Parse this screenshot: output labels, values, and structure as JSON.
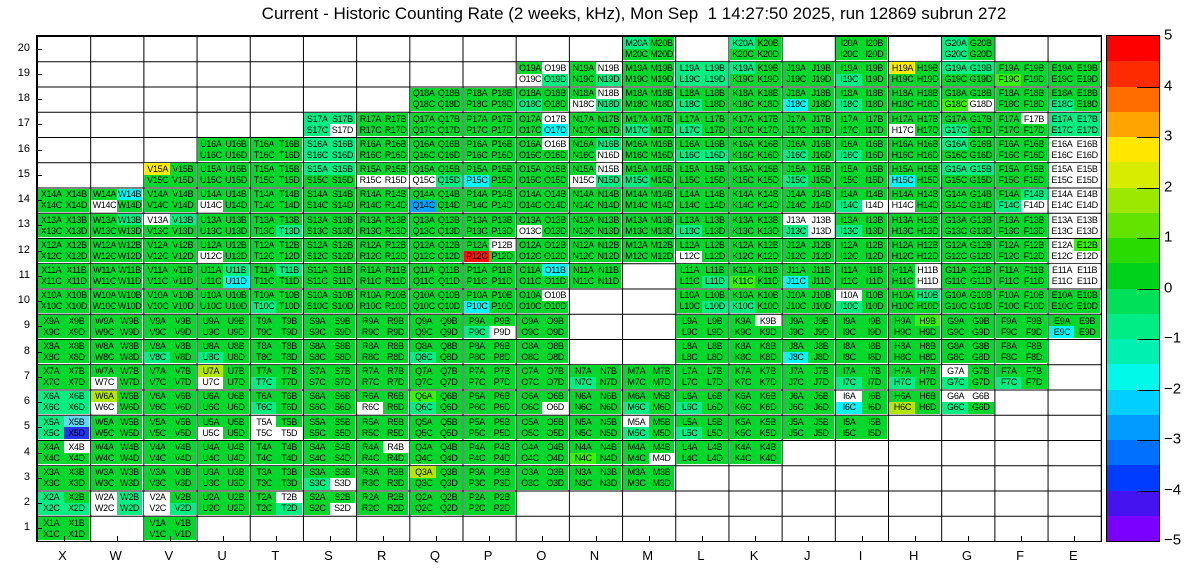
{
  "title": "Current - Historic Counting Rate (2 weeks, kHz), Mon Sep  1 14:27:50 2025, run 12869 subrun 272",
  "chart_data": {
    "type": "heatmap",
    "title": "Current - Historic Counting Rate (2 weeks, kHz), Mon Sep  1 14:27:50 2025, run 12869 subrun 272",
    "x_labels": [
      "X",
      "W",
      "V",
      "U",
      "T",
      "S",
      "R",
      "Q",
      "P",
      "O",
      "N",
      "M",
      "L",
      "K",
      "J",
      "I",
      "H",
      "G",
      "F",
      "E"
    ],
    "y_labels": [
      "20",
      "19",
      "18",
      "17",
      "16",
      "15",
      "14",
      "13",
      "12",
      "11",
      "10",
      "9",
      "8",
      "7",
      "6",
      "5",
      "4",
      "3",
      "2",
      "1"
    ],
    "quad_order": "ABCD",
    "colorbar": {
      "min": -5,
      "max": 5,
      "tick_labels": [
        "5",
        "4",
        "3",
        "2",
        "1",
        "0",
        "−1",
        "−2",
        "−3",
        "−4",
        "−5"
      ],
      "band_colors": [
        "#FF0000",
        "#FF2B00",
        "#FF6C00",
        "#FFA400",
        "#FFE700",
        "#D7EC00",
        "#9CE800",
        "#63E300",
        "#2ADB00",
        "#00D21B",
        "#00E159",
        "#00EC85",
        "#00F0B2",
        "#00F9E8",
        "#00CFFF",
        "#009CFF",
        "#0070FF",
        "#003CFF",
        "#4413EF",
        "#7A00FF"
      ]
    },
    "palette": {
      "g": "#00D92B",
      "m": "#00EF83",
      "G": "#37F500",
      "l": "#B4E700",
      "y": "#FFEB00",
      "r": "#FF1000",
      "c": "#00F9F9",
      "C": "#63D6F2",
      "b": "#00A3FF",
      "B": "#2634EE",
      "w": "#FFFFFF"
    },
    "class_values": {
      "g": 0.25,
      "m": -0.25,
      "G": 1.0,
      "l": 2.0,
      "y": 3.0,
      "r": 5.0,
      "c": -1.75,
      "C": -1.5,
      "b": -3.0,
      "B": -4.0,
      "w": null
    },
    "cells": {
      "M20": "mggg",
      "K20": "mggg",
      "I20": "gggg",
      "G20": "mgmg",
      "O19": "gwwm",
      "N19": "gwgm",
      "M19": "gggg",
      "L19": "mmmm",
      "K19": "mggg",
      "J19": "gggg",
      "I19": "ggmg",
      "H19": "yggg",
      "G19": "mmgg",
      "F19": "ggGg",
      "E19": "gggg",
      "Q18": "gggg",
      "P18": "gggg",
      "O18": "ggmg",
      "N18": "gwwm",
      "M18": "gggg",
      "L18": "ggmg",
      "K18": "gggg",
      "J18": "ggcg",
      "I18": "ggmg",
      "H18": "gggg",
      "G18": "ggGw",
      "F18": "gggg",
      "E18": "ggmg",
      "S17": "mmmw",
      "R17": "gggg",
      "Q17": "gggg",
      "P17": "gggg",
      "O17": "gwgc",
      "N17": "gggg",
      "M17": "ggmg",
      "L17": "ggmg",
      "K17": "gggg",
      "J17": "gggg",
      "I17": "gggg",
      "H17": "ggwg",
      "G17": "ggmg",
      "F17": "gwgg",
      "E17": "mmmm",
      "U16": "gggg",
      "T16": "gggg",
      "S16": "mmmm",
      "R16": "gggg",
      "Q16": "gggg",
      "P16": "gggg",
      "O16": "gwgg",
      "N16": "gmgw",
      "M16": "gggg",
      "L16": "ggmm",
      "K16": "gggg",
      "J16": "ggmg",
      "I16": "ggmg",
      "H16": "gggg",
      "G16": "mggg",
      "F16": "gggg",
      "E16": "wwww",
      "V15": "yggg",
      "U15": "gggg",
      "T15": "gggg",
      "S15": "mmgg",
      "R15": "ggww",
      "Q15": "ggwm",
      "P15": "ggcg",
      "O15": "gggg",
      "N15": "gwwm",
      "M15": "ggmg",
      "L15": "gggg",
      "K15": "gggg",
      "J15": "ggmg",
      "I15": "gggg",
      "H15": "ggcg",
      "G15": "mmgg",
      "F15": "gggg",
      "E15": "wwww",
      "X14": "gggg",
      "W14": "gcwg",
      "V14": "gggg",
      "U14": "ggwg",
      "T14": "gggg",
      "S14": "gggg",
      "R14": "gggg",
      "Q14": "ggbg",
      "P14": "gggg",
      "O14": "gggg",
      "N14": "gggg",
      "M14": "gggg",
      "L14": "gggg",
      "K14": "gggg",
      "J14": "gggg",
      "I14": "ggmw",
      "H14": "ggwg",
      "G14": "gggg",
      "F14": "gmmw",
      "E14": "wwww",
      "X13": "gggg",
      "W13": "gmgg",
      "V13": "wmgg",
      "U13": "gggg",
      "T13": "gggm",
      "S13": "gggg",
      "R13": "gggg",
      "Q13": "gggg",
      "P13": "gggg",
      "O13": "ggwg",
      "N13": "gggg",
      "M13": "gggg",
      "L13": "ggmg",
      "K13": "gggg",
      "J13": "wwmw",
      "I13": "ggmg",
      "H13": "gggg",
      "G13": "gggg",
      "F13": "gggg",
      "E13": "wwww",
      "X12": "gggg",
      "W12": "gggg",
      "V12": "gggg",
      "U12": "ggwg",
      "T12": "gggg",
      "S12": "gggg",
      "R12": "gggg",
      "Q12": "gggg",
      "P12": "gwrg",
      "O12": "gggg",
      "N12": "gggg",
      "M12": "gggg",
      "L12": "ggwg",
      "K12": "gggg",
      "J12": "gggg",
      "I12": "gggg",
      "H12": "gggg",
      "G12": "gggg",
      "F12": "gggg",
      "E12": "wGww",
      "X11": "gggg",
      "W11": "gggg",
      "V11": "gggg",
      "U11": "gmgc",
      "T11": "gmgg",
      "S11": "gggg",
      "R11": "gggg",
      "Q11": "gggg",
      "P11": "gggg",
      "O11": "gcgg",
      "N11": "gggg",
      "L11": "gggm",
      "K11": "ggGg",
      "J11": "ggcg",
      "I11": "gggg",
      "H11": "gwgw",
      "G11": "gggg",
      "F11": "gggg",
      "E11": "wwww",
      "X10": "gggg",
      "W10": "gggg",
      "V10": "gggg",
      "U10": "gggg",
      "T10": "ggmg",
      "S10": "gggg",
      "R10": "gggg",
      "Q10": "gggg",
      "P10": "ggcg",
      "O10": "gwgg",
      "L10": "gggm",
      "K10": "ggmg",
      "J10": "gggg",
      "I10": "wgmg",
      "H10": "gmgg",
      "G10": "gggg",
      "F10": "gggg",
      "E10": "gggg",
      "X9": "gggg",
      "W9": "gggg",
      "V9": "gggg",
      "U9": "gggg",
      "T9": "gggg",
      "S9": "gggg",
      "R9": "gggg",
      "Q9": "gggg",
      "P9": "ggmw",
      "O9": "gggg",
      "L9": "gggg",
      "K9": "gwgg",
      "J9": "gggg",
      "I9": "gggg",
      "H9": "gGgg",
      "G9": "gggg",
      "F9": "gggg",
      "E9": "ggcg",
      "X8": "gggg",
      "W8": "gggg",
      "V8": "ggmg",
      "U8": "ggmg",
      "T8": "gggg",
      "S8": "gggg",
      "R8": "gggg",
      "Q8": "ggmg",
      "P8": "gggg",
      "O8": "gggg",
      "L8": "gggg",
      "K8": "gggg",
      "J8": "ggcg",
      "I8": "gggg",
      "H8": "gggg",
      "G8": "gggg",
      "F8": "gggg",
      "X7": "gggg",
      "W7": "ggwg",
      "V7": "gggg",
      "U7": "lgwg",
      "T7": "ggmg",
      "S7": "gggg",
      "R7": "gggg",
      "Q7": "gggg",
      "P7": "gggg",
      "O7": "gggg",
      "N7": "ggmg",
      "M7": "gggg",
      "L7": "gggg",
      "K7": "gggg",
      "J7": "gggg",
      "I7": "ggmg",
      "H7": "ggmg",
      "G7": "wgmg",
      "F7": "ggmg",
      "X6": "mmmm",
      "W6": "lgwg",
      "V6": "gggg",
      "U6": "gggg",
      "T6": "ggmg",
      "S6": "gggg",
      "R6": "ggwg",
      "Q6": "Ggmg",
      "P6": "gggg",
      "O6": "gggw",
      "N6": "gggg",
      "M6": "ggmg",
      "L6": "ggmg",
      "K6": "gggg",
      "J6": "gggg",
      "I6": "wgcg",
      "H6": "gglg",
      "G6": "wwmg",
      "X5": "mCmB",
      "W5": "gggg",
      "V5": "gggg",
      "U5": "ggwg",
      "T5": "wgww",
      "S5": "gggg",
      "R5": "gggg",
      "Q5": "gggg",
      "P5": "gggg",
      "O5": "gggg",
      "N5": "gggg",
      "M5": "wgmg",
      "L5": "ggmg",
      "K5": "gggg",
      "J5": "gggg",
      "I5": "gggg",
      "X4": "gwgg",
      "W4": "gggg",
      "V4": "gggg",
      "U4": "gggg",
      "T4": "gggg",
      "S4": "gggg",
      "R4": "gwgg",
      "Q4": "gggg",
      "P4": "gggg",
      "O4": "gggg",
      "N4": "ggGg",
      "M4": "gggw",
      "L4": "gggg",
      "K4": "gggg",
      "X3": "gggg",
      "W3": "gggg",
      "V3": "gggg",
      "U3": "gggg",
      "T3": "gggg",
      "S3": "ggmw",
      "R3": "gggg",
      "Q3": "lggg",
      "P3": "gggg",
      "O3": "gggg",
      "N3": "gggg",
      "M3": "gggg",
      "X2": "mgmm",
      "W2": "wmwm",
      "V2": "wgwm",
      "U2": "gggg",
      "T2": "gwgm",
      "S2": "gggw",
      "R2": "gggg",
      "Q2": "gggg",
      "P2": "gggg",
      "X1": "gggg",
      "V1": "gggg"
    }
  }
}
